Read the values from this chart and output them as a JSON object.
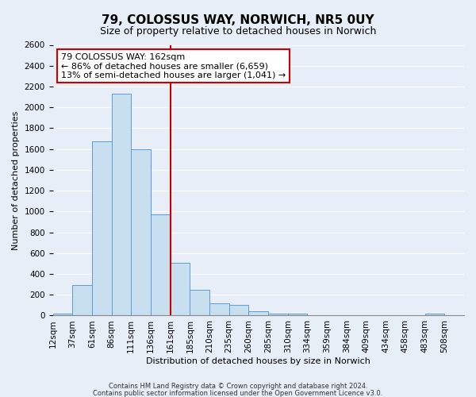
{
  "title": "79, COLOSSUS WAY, NORWICH, NR5 0UY",
  "subtitle": "Size of property relative to detached houses in Norwich",
  "xlabel": "Distribution of detached houses by size in Norwich",
  "ylabel": "Number of detached properties",
  "bin_labels": [
    "12sqm",
    "37sqm",
    "61sqm",
    "86sqm",
    "111sqm",
    "136sqm",
    "161sqm",
    "185sqm",
    "210sqm",
    "235sqm",
    "260sqm",
    "285sqm",
    "310sqm",
    "334sqm",
    "359sqm",
    "384sqm",
    "409sqm",
    "434sqm",
    "458sqm",
    "483sqm",
    "508sqm"
  ],
  "bar_heights": [
    20,
    290,
    1670,
    2130,
    1600,
    970,
    510,
    250,
    120,
    100,
    40,
    15,
    15,
    5,
    5,
    3,
    3,
    2,
    2,
    20,
    2
  ],
  "bar_color": "#c8dff0",
  "bar_edge_color": "#5b9bd5",
  "vline_x_index": 6,
  "vline_color": "#cc0000",
  "annotation_title": "79 COLOSSUS WAY: 162sqm",
  "annotation_line1": "← 86% of detached houses are smaller (6,659)",
  "annotation_line2": "13% of semi-detached houses are larger (1,041) →",
  "annotation_box_color": "#ffffff",
  "annotation_box_edge": "#cc0000",
  "footer1": "Contains HM Land Registry data © Crown copyright and database right 2024.",
  "footer2": "Contains public sector information licensed under the Open Government Licence v3.0.",
  "ylim": [
    0,
    2600
  ],
  "yticks": [
    0,
    200,
    400,
    600,
    800,
    1000,
    1200,
    1400,
    1600,
    1800,
    2000,
    2200,
    2400,
    2600
  ],
  "background_color": "#e8eef8",
  "plot_bg_color": "#e8eef8",
  "title_fontsize": 11,
  "subtitle_fontsize": 9,
  "ylabel_fontsize": 8,
  "xlabel_fontsize": 8,
  "tick_fontsize": 7.5,
  "annotation_fontsize": 8
}
